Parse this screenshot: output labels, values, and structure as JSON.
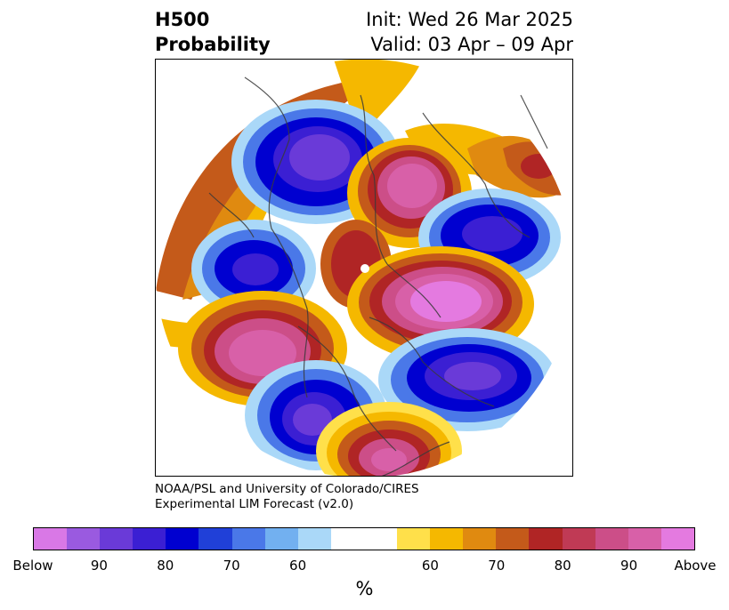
{
  "title": {
    "left_line1": "H500",
    "left_line2": "Probability",
    "right_line1": "Init: Wed 26 Mar 2025",
    "right_line2": "Valid: 03 Apr – 09 Apr"
  },
  "credit": {
    "line1": "NOAA/PSL and University of Colorado/CIRES",
    "line2": "Experimental LIM Forecast (v2.0)"
  },
  "colorbar": {
    "colors": [
      "#d978e6",
      "#9a5ae0",
      "#6a3ad8",
      "#3b1fd3",
      "#0000d0",
      "#2040d8",
      "#4a78e8",
      "#72b0f0",
      "#aad8f8",
      "#ffffff",
      "#ffffff",
      "#ffe04a",
      "#f5b800",
      "#e08a10",
      "#c45a1a",
      "#b02525",
      "#c03a55",
      "#cc4e88",
      "#d860a8",
      "#e47ae0"
    ],
    "ticks": [
      {
        "label": "Below"
      },
      {
        "label": "90"
      },
      {
        "label": "80"
      },
      {
        "label": "70"
      },
      {
        "label": "60"
      },
      {
        "label": "60"
      },
      {
        "label": "70"
      },
      {
        "label": "80"
      },
      {
        "label": "90"
      },
      {
        "label": "Above"
      }
    ],
    "unit": "%"
  }
}
